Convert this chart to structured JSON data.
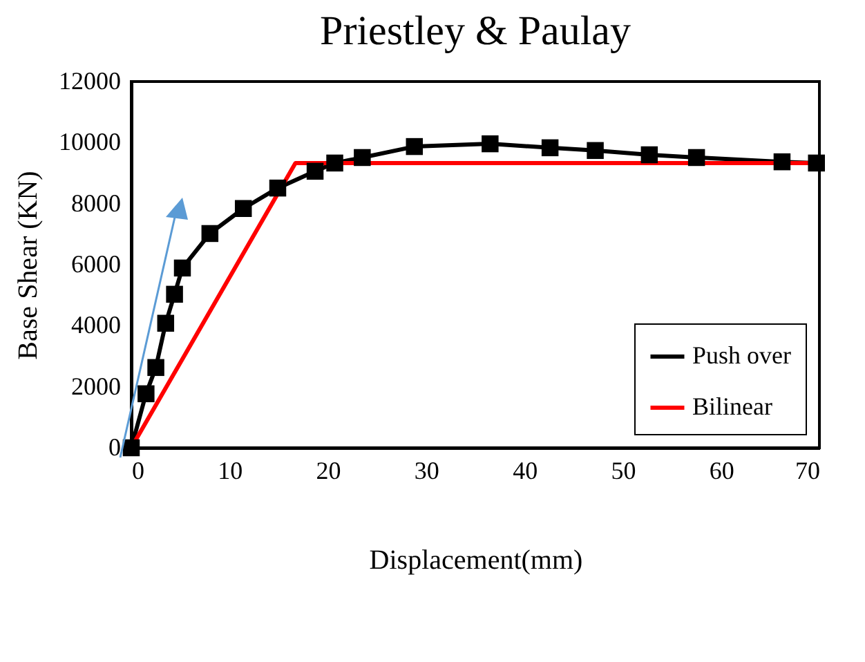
{
  "chart_data": {
    "type": "line",
    "title": "Priestley & Paulay",
    "xlabel": "Displacement(mm)",
    "ylabel": "Base Shear (KN)",
    "xlim": [
      0,
      70
    ],
    "xticks": [
      0,
      10,
      20,
      30,
      40,
      50,
      60,
      70
    ],
    "ylim": [
      0,
      12000
    ],
    "yticks": [
      0,
      2000,
      4000,
      6000,
      8000,
      10000,
      12000
    ],
    "grid": false,
    "legend": "bottom right",
    "series": [
      {
        "name": "Push over",
        "color": "#000000",
        "marker": "square",
        "x": [
          0,
          1.5,
          2.5,
          3.5,
          4.4,
          5.2,
          8.0,
          11.4,
          14.9,
          18.7,
          20.7,
          23.5,
          28.8,
          36.5,
          42.6,
          47.2,
          52.7,
          57.5,
          66.2,
          69.7
        ],
        "values": [
          0,
          1770,
          2630,
          4080,
          5030,
          5890,
          7020,
          7840,
          8510,
          9060,
          9330,
          9510,
          9870,
          9960,
          9830,
          9740,
          9600,
          9510,
          9370,
          9330
        ]
      },
      {
        "name": "Bilinear",
        "color": "#ff0000",
        "x": [
          0,
          16.7,
          69.7
        ],
        "values": [
          0,
          9330,
          9330
        ]
      }
    ]
  }
}
